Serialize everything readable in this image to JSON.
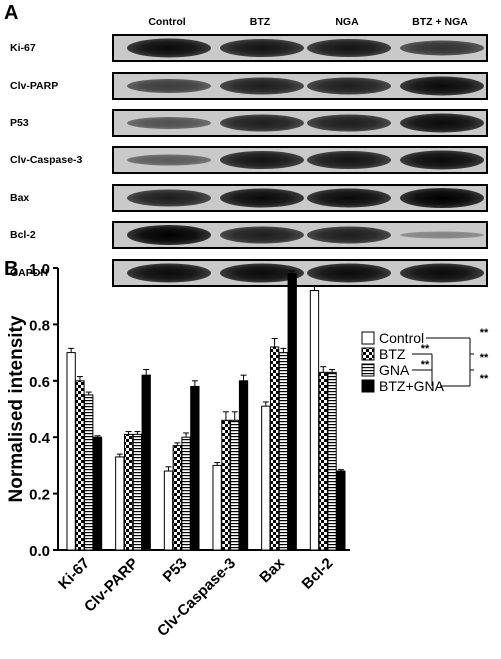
{
  "panelA": {
    "letter": "A",
    "lanes": [
      "Control",
      "BTZ",
      "NGA",
      "BTZ + NGA"
    ],
    "rows": [
      {
        "label": "Ki-67",
        "intensities": [
          0.95,
          0.9,
          0.9,
          0.75
        ]
      },
      {
        "label": "Clv-PARP",
        "intensities": [
          0.7,
          0.85,
          0.85,
          0.95
        ]
      },
      {
        "label": "P53",
        "intensities": [
          0.6,
          0.85,
          0.85,
          0.95
        ]
      },
      {
        "label": "Clv-Caspase-3",
        "intensities": [
          0.55,
          0.9,
          0.9,
          0.95
        ]
      },
      {
        "label": "Bax",
        "intensities": [
          0.85,
          0.95,
          0.95,
          1.0
        ]
      },
      {
        "label": "Bcl-2",
        "intensities": [
          1.0,
          0.85,
          0.85,
          0.35
        ]
      },
      {
        "label": "GAPDH",
        "intensities": [
          0.95,
          0.95,
          0.95,
          0.95
        ]
      }
    ]
  },
  "panelB": {
    "letter": "B"
  },
  "chart_data": {
    "type": "bar",
    "ylabel": "Normalised intensity",
    "xlabel": "",
    "ylim": [
      0,
      1.0
    ],
    "yticks": [
      "0.0",
      "0.2",
      "0.4",
      "0.6",
      "0.8",
      "1.0"
    ],
    "categories": [
      "Ki-67",
      "Clv-PARP",
      "P53",
      "Clv-Caspase-3",
      "Bax",
      "Bcl-2"
    ],
    "series": [
      {
        "name": "Control",
        "fill": "white",
        "values": [
          0.7,
          0.33,
          0.28,
          0.3,
          0.51,
          0.92
        ],
        "errors": [
          0.015,
          0.01,
          0.015,
          0.01,
          0.015,
          0.015
        ]
      },
      {
        "name": "BTZ",
        "fill": "checker",
        "values": [
          0.6,
          0.41,
          0.37,
          0.46,
          0.72,
          0.63
        ],
        "errors": [
          0.015,
          0.01,
          0.01,
          0.03,
          0.03,
          0.02
        ]
      },
      {
        "name": "GNA",
        "fill": "hlines",
        "values": [
          0.55,
          0.41,
          0.4,
          0.46,
          0.7,
          0.63
        ],
        "errors": [
          0.01,
          0.01,
          0.015,
          0.03,
          0.015,
          0.01
        ]
      },
      {
        "name": "BTZ+GNA",
        "fill": "black",
        "values": [
          0.4,
          0.62,
          0.58,
          0.6,
          0.98,
          0.28
        ],
        "errors": [
          0.005,
          0.02,
          0.02,
          0.02,
          0.01,
          0.005
        ]
      }
    ],
    "significance": [
      "**",
      "**",
      "**",
      "**",
      "**"
    ],
    "legend_position": "top-right"
  }
}
